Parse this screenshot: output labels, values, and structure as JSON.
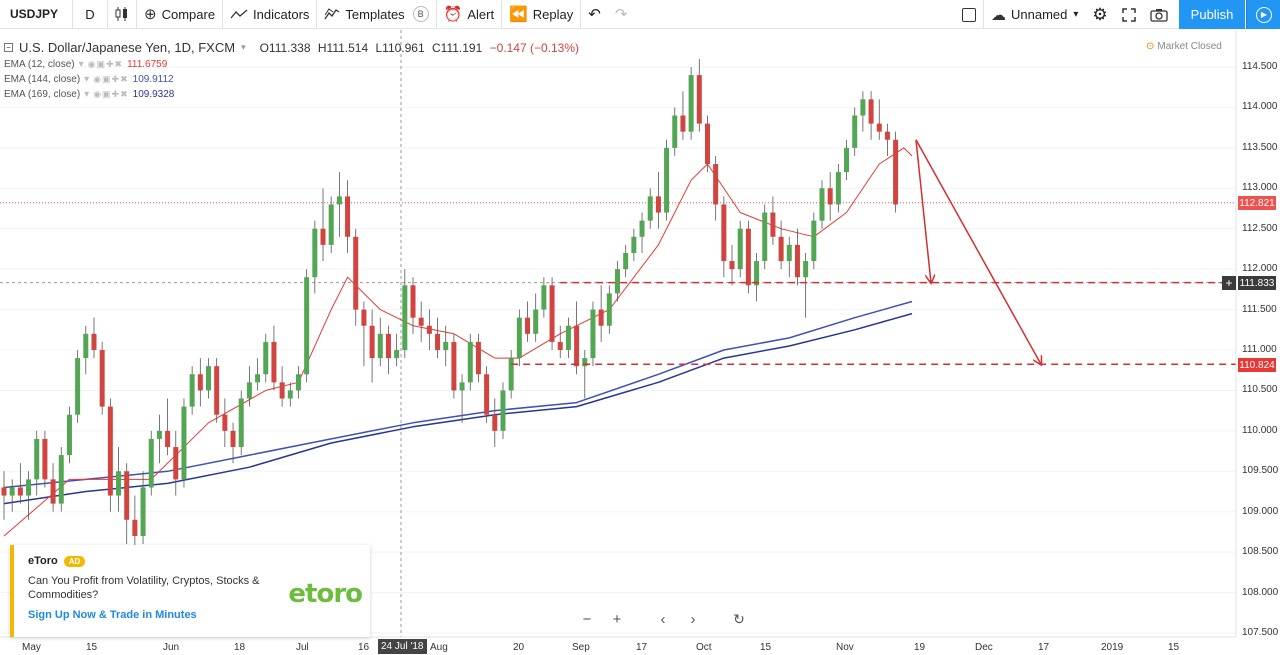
{
  "toolbar": {
    "symbol": "USDJPY",
    "interval": "D",
    "compare_label": "Compare",
    "indicators_label": "Indicators",
    "templates_label": "Templates",
    "templates_badge": "B",
    "alert_label": "Alert",
    "replay_label": "Replay",
    "layout_name": "Unnamed",
    "publish_label": "Publish"
  },
  "legend": {
    "title": "U.S. Dollar/Japanese Yen, 1D, FXCM",
    "open": "O111.338",
    "high": "H111.514",
    "low": "L110.961",
    "close": "C111.191",
    "change": "−0.147 (−0.13%)",
    "market_status": "Market Closed",
    "indicators": [
      {
        "label": "EMA (12, close)",
        "value": "111.6759",
        "color": "#e53935"
      },
      {
        "label": "EMA (144, close)",
        "value": "109.9112",
        "color": "#3f51b5"
      },
      {
        "label": "EMA (169, close)",
        "value": "109.9328",
        "color": "#283593"
      }
    ]
  },
  "price_axis": [
    "114.500",
    "114.000",
    "113.500",
    "113.000",
    "112.500",
    "112.000",
    "111.500",
    "111.000",
    "110.500",
    "110.000",
    "109.500",
    "109.000",
    "108.500",
    "108.000",
    "107.500"
  ],
  "price_badges": {
    "last": "112.821",
    "crosshair": "111.833",
    "level": "110.824"
  },
  "date_axis": [
    "May",
    "15",
    "Jun",
    "18",
    "Jul",
    "16",
    "Aug",
    "20",
    "Sep",
    "17",
    "Oct",
    "15",
    "Nov",
    "19",
    "Dec",
    "17",
    "2019",
    "15"
  ],
  "crosshair_date": "24 Jul '18",
  "ad": {
    "brand": "eToro",
    "tag": "AD",
    "body": "Can You Profit from Volatility, Cryptos, Stocks & Commodities?",
    "link": "Sign Up Now & Trade in Minutes",
    "logo": "etoro"
  },
  "colors": {
    "up": "#53a653",
    "down": "#d2443f",
    "ema12": "#e53935",
    "ema144": "#3f51b5",
    "ema169": "#283593",
    "drawing": "#d32f2f",
    "accent": "#2196f3"
  },
  "chart_data": {
    "type": "candlestick",
    "symbol": "USDJPY",
    "interval": "1D",
    "ylim": [
      107.5,
      114.6
    ],
    "horizontal_levels": [
      111.833,
      110.824
    ],
    "last_price": 112.821,
    "candles": [
      {
        "o": 109.3,
        "h": 109.5,
        "l": 108.9,
        "c": 109.2
      },
      {
        "o": 109.2,
        "h": 109.4,
        "l": 109.0,
        "c": 109.3
      },
      {
        "o": 109.3,
        "h": 109.6,
        "l": 109.1,
        "c": 109.2
      },
      {
        "o": 109.2,
        "h": 109.5,
        "l": 108.9,
        "c": 109.4
      },
      {
        "o": 109.4,
        "h": 110.0,
        "l": 109.2,
        "c": 109.9
      },
      {
        "o": 109.9,
        "h": 110.0,
        "l": 109.3,
        "c": 109.4
      },
      {
        "o": 109.4,
        "h": 109.6,
        "l": 109.0,
        "c": 109.1
      },
      {
        "o": 109.1,
        "h": 109.8,
        "l": 109.0,
        "c": 109.7
      },
      {
        "o": 109.7,
        "h": 110.3,
        "l": 109.6,
        "c": 110.2
      },
      {
        "o": 110.2,
        "h": 111.0,
        "l": 110.1,
        "c": 110.9
      },
      {
        "o": 110.9,
        "h": 111.3,
        "l": 110.7,
        "c": 111.2
      },
      {
        "o": 111.2,
        "h": 111.4,
        "l": 110.9,
        "c": 111.0
      },
      {
        "o": 111.0,
        "h": 111.1,
        "l": 110.2,
        "c": 110.3
      },
      {
        "o": 110.3,
        "h": 110.4,
        "l": 109.0,
        "c": 109.2
      },
      {
        "o": 109.2,
        "h": 109.8,
        "l": 109.0,
        "c": 109.5
      },
      {
        "o": 109.5,
        "h": 109.6,
        "l": 108.6,
        "c": 108.9
      },
      {
        "o": 108.9,
        "h": 109.2,
        "l": 108.5,
        "c": 108.7
      },
      {
        "o": 108.7,
        "h": 109.5,
        "l": 108.6,
        "c": 109.3
      },
      {
        "o": 109.3,
        "h": 110.0,
        "l": 109.2,
        "c": 109.9
      },
      {
        "o": 109.9,
        "h": 110.2,
        "l": 109.6,
        "c": 110.0
      },
      {
        "o": 110.0,
        "h": 110.4,
        "l": 109.7,
        "c": 109.8
      },
      {
        "o": 109.8,
        "h": 110.0,
        "l": 109.2,
        "c": 109.4
      },
      {
        "o": 109.4,
        "h": 110.4,
        "l": 109.3,
        "c": 110.3
      },
      {
        "o": 110.3,
        "h": 110.8,
        "l": 110.2,
        "c": 110.7
      },
      {
        "o": 110.7,
        "h": 110.9,
        "l": 110.3,
        "c": 110.5
      },
      {
        "o": 110.5,
        "h": 110.9,
        "l": 110.4,
        "c": 110.8
      },
      {
        "o": 110.8,
        "h": 110.9,
        "l": 110.1,
        "c": 110.2
      },
      {
        "o": 110.2,
        "h": 110.4,
        "l": 109.8,
        "c": 110.0
      },
      {
        "o": 110.0,
        "h": 110.1,
        "l": 109.6,
        "c": 109.8
      },
      {
        "o": 109.8,
        "h": 110.5,
        "l": 109.7,
        "c": 110.4
      },
      {
        "o": 110.4,
        "h": 110.8,
        "l": 110.3,
        "c": 110.6
      },
      {
        "o": 110.6,
        "h": 110.9,
        "l": 110.5,
        "c": 110.7
      },
      {
        "o": 110.7,
        "h": 111.2,
        "l": 110.6,
        "c": 111.1
      },
      {
        "o": 111.1,
        "h": 111.3,
        "l": 110.5,
        "c": 110.6
      },
      {
        "o": 110.6,
        "h": 110.8,
        "l": 110.3,
        "c": 110.4
      },
      {
        "o": 110.4,
        "h": 110.6,
        "l": 110.3,
        "c": 110.5
      },
      {
        "o": 110.5,
        "h": 110.8,
        "l": 110.4,
        "c": 110.7
      },
      {
        "o": 110.7,
        "h": 112.0,
        "l": 110.6,
        "c": 111.9
      },
      {
        "o": 111.9,
        "h": 112.6,
        "l": 111.7,
        "c": 112.5
      },
      {
        "o": 112.5,
        "h": 113.0,
        "l": 112.1,
        "c": 112.3
      },
      {
        "o": 112.3,
        "h": 112.9,
        "l": 112.2,
        "c": 112.8
      },
      {
        "o": 112.8,
        "h": 113.2,
        "l": 112.4,
        "c": 112.9
      },
      {
        "o": 112.9,
        "h": 113.1,
        "l": 112.2,
        "c": 112.4
      },
      {
        "o": 112.4,
        "h": 112.5,
        "l": 111.3,
        "c": 111.5
      },
      {
        "o": 111.5,
        "h": 111.6,
        "l": 110.8,
        "c": 111.3
      },
      {
        "o": 111.3,
        "h": 111.5,
        "l": 110.6,
        "c": 110.9
      },
      {
        "o": 110.9,
        "h": 111.4,
        "l": 110.8,
        "c": 111.2
      },
      {
        "o": 111.2,
        "h": 111.3,
        "l": 110.7,
        "c": 110.9
      },
      {
        "o": 110.9,
        "h": 111.2,
        "l": 110.8,
        "c": 111.0
      },
      {
        "o": 111.0,
        "h": 112.0,
        "l": 110.9,
        "c": 111.8
      },
      {
        "o": 111.8,
        "h": 111.9,
        "l": 111.2,
        "c": 111.4
      },
      {
        "o": 111.4,
        "h": 111.6,
        "l": 111.1,
        "c": 111.3
      },
      {
        "o": 111.3,
        "h": 111.5,
        "l": 111.0,
        "c": 111.2
      },
      {
        "o": 111.2,
        "h": 111.4,
        "l": 110.9,
        "c": 111.0
      },
      {
        "o": 111.0,
        "h": 111.3,
        "l": 110.8,
        "c": 111.1
      },
      {
        "o": 111.1,
        "h": 111.2,
        "l": 110.4,
        "c": 110.5
      },
      {
        "o": 110.5,
        "h": 110.7,
        "l": 110.1,
        "c": 110.6
      },
      {
        "o": 110.6,
        "h": 111.2,
        "l": 110.5,
        "c": 111.1
      },
      {
        "o": 111.1,
        "h": 111.2,
        "l": 110.6,
        "c": 110.7
      },
      {
        "o": 110.7,
        "h": 110.8,
        "l": 110.1,
        "c": 110.2
      },
      {
        "o": 110.2,
        "h": 110.4,
        "l": 109.8,
        "c": 110.0
      },
      {
        "o": 110.0,
        "h": 110.6,
        "l": 109.9,
        "c": 110.5
      },
      {
        "o": 110.5,
        "h": 111.0,
        "l": 110.4,
        "c": 110.9
      },
      {
        "o": 110.9,
        "h": 111.5,
        "l": 110.8,
        "c": 111.4
      },
      {
        "o": 111.4,
        "h": 111.6,
        "l": 111.1,
        "c": 111.2
      },
      {
        "o": 111.2,
        "h": 111.7,
        "l": 111.1,
        "c": 111.5
      },
      {
        "o": 111.5,
        "h": 111.9,
        "l": 111.4,
        "c": 111.8
      },
      {
        "o": 111.8,
        "h": 111.9,
        "l": 111.0,
        "c": 111.1
      },
      {
        "o": 111.1,
        "h": 111.3,
        "l": 110.9,
        "c": 111.0
      },
      {
        "o": 111.0,
        "h": 111.4,
        "l": 110.9,
        "c": 111.3
      },
      {
        "o": 111.3,
        "h": 111.6,
        "l": 110.7,
        "c": 110.8
      },
      {
        "o": 110.8,
        "h": 111.0,
        "l": 110.4,
        "c": 110.9
      },
      {
        "o": 110.9,
        "h": 111.6,
        "l": 110.8,
        "c": 111.5
      },
      {
        "o": 111.5,
        "h": 111.8,
        "l": 111.1,
        "c": 111.3
      },
      {
        "o": 111.3,
        "h": 111.8,
        "l": 111.2,
        "c": 111.7
      },
      {
        "o": 111.7,
        "h": 112.1,
        "l": 111.6,
        "c": 112.0
      },
      {
        "o": 112.0,
        "h": 112.3,
        "l": 111.9,
        "c": 112.2
      },
      {
        "o": 112.2,
        "h": 112.5,
        "l": 112.1,
        "c": 112.4
      },
      {
        "o": 112.4,
        "h": 112.7,
        "l": 112.2,
        "c": 112.6
      },
      {
        "o": 112.6,
        "h": 113.0,
        "l": 112.5,
        "c": 112.9
      },
      {
        "o": 112.9,
        "h": 113.2,
        "l": 112.5,
        "c": 112.7
      },
      {
        "o": 112.7,
        "h": 113.6,
        "l": 112.6,
        "c": 113.5
      },
      {
        "o": 113.5,
        "h": 114.0,
        "l": 113.4,
        "c": 113.9
      },
      {
        "o": 113.9,
        "h": 114.2,
        "l": 113.6,
        "c": 113.7
      },
      {
        "o": 113.7,
        "h": 114.5,
        "l": 113.6,
        "c": 114.4
      },
      {
        "o": 114.4,
        "h": 114.6,
        "l": 113.7,
        "c": 113.8
      },
      {
        "o": 113.8,
        "h": 113.9,
        "l": 113.2,
        "c": 113.3
      },
      {
        "o": 113.3,
        "h": 113.4,
        "l": 112.6,
        "c": 112.8
      },
      {
        "o": 112.8,
        "h": 112.9,
        "l": 111.9,
        "c": 112.1
      },
      {
        "o": 112.1,
        "h": 112.3,
        "l": 111.8,
        "c": 112.0
      },
      {
        "o": 112.0,
        "h": 112.6,
        "l": 111.9,
        "c": 112.5
      },
      {
        "o": 112.5,
        "h": 112.6,
        "l": 111.7,
        "c": 111.8
      },
      {
        "o": 111.8,
        "h": 112.2,
        "l": 111.6,
        "c": 112.1
      },
      {
        "o": 112.1,
        "h": 112.8,
        "l": 112.0,
        "c": 112.7
      },
      {
        "o": 112.7,
        "h": 112.9,
        "l": 112.3,
        "c": 112.4
      },
      {
        "o": 112.4,
        "h": 112.6,
        "l": 112.0,
        "c": 112.1
      },
      {
        "o": 112.1,
        "h": 112.4,
        "l": 111.9,
        "c": 112.3
      },
      {
        "o": 112.3,
        "h": 112.5,
        "l": 111.8,
        "c": 111.9
      },
      {
        "o": 111.9,
        "h": 112.2,
        "l": 111.4,
        "c": 112.1
      },
      {
        "o": 112.1,
        "h": 112.7,
        "l": 112.0,
        "c": 112.6
      },
      {
        "o": 112.6,
        "h": 113.1,
        "l": 112.5,
        "c": 113.0
      },
      {
        "o": 113.0,
        "h": 113.2,
        "l": 112.6,
        "c": 112.8
      },
      {
        "o": 112.8,
        "h": 113.3,
        "l": 112.7,
        "c": 113.2
      },
      {
        "o": 113.2,
        "h": 113.6,
        "l": 113.1,
        "c": 113.5
      },
      {
        "o": 113.5,
        "h": 114.0,
        "l": 113.4,
        "c": 113.9
      },
      {
        "o": 113.9,
        "h": 114.2,
        "l": 113.7,
        "c": 114.1
      },
      {
        "o": 114.1,
        "h": 114.2,
        "l": 113.6,
        "c": 113.8
      },
      {
        "o": 113.8,
        "h": 114.1,
        "l": 113.6,
        "c": 113.7
      },
      {
        "o": 113.7,
        "h": 113.8,
        "l": 113.4,
        "c": 113.6
      },
      {
        "o": 113.6,
        "h": 113.7,
        "l": 112.7,
        "c": 112.8
      }
    ],
    "ema12": [
      {
        "i": 0,
        "v": 108.7
      },
      {
        "i": 8,
        "v": 109.4
      },
      {
        "i": 14,
        "v": 109.4
      },
      {
        "i": 18,
        "v": 109.4
      },
      {
        "i": 25,
        "v": 110.1
      },
      {
        "i": 32,
        "v": 110.5
      },
      {
        "i": 36,
        "v": 110.6
      },
      {
        "i": 40,
        "v": 111.5
      },
      {
        "i": 42,
        "v": 111.9
      },
      {
        "i": 46,
        "v": 111.5
      },
      {
        "i": 50,
        "v": 111.3
      },
      {
        "i": 55,
        "v": 111.2
      },
      {
        "i": 60,
        "v": 110.9
      },
      {
        "i": 63,
        "v": 110.9
      },
      {
        "i": 68,
        "v": 111.2
      },
      {
        "i": 74,
        "v": 111.5
      },
      {
        "i": 80,
        "v": 112.3
      },
      {
        "i": 84,
        "v": 113.1
      },
      {
        "i": 86,
        "v": 113.3
      },
      {
        "i": 90,
        "v": 112.7
      },
      {
        "i": 95,
        "v": 112.5
      },
      {
        "i": 99,
        "v": 112.4
      },
      {
        "i": 103,
        "v": 112.7
      },
      {
        "i": 107,
        "v": 113.3
      },
      {
        "i": 110,
        "v": 113.5
      },
      {
        "i": 111,
        "v": 113.4
      }
    ],
    "ema144": [
      {
        "i": 0,
        "v": 109.3
      },
      {
        "i": 10,
        "v": 109.4
      },
      {
        "i": 20,
        "v": 109.5
      },
      {
        "i": 30,
        "v": 109.7
      },
      {
        "i": 40,
        "v": 109.9
      },
      {
        "i": 50,
        "v": 110.1
      },
      {
        "i": 60,
        "v": 110.25
      },
      {
        "i": 70,
        "v": 110.35
      },
      {
        "i": 80,
        "v": 110.7
      },
      {
        "i": 88,
        "v": 111.0
      },
      {
        "i": 96,
        "v": 111.15
      },
      {
        "i": 104,
        "v": 111.4
      },
      {
        "i": 111,
        "v": 111.6
      }
    ],
    "ema169": [
      {
        "i": 0,
        "v": 109.1
      },
      {
        "i": 10,
        "v": 109.25
      },
      {
        "i": 20,
        "v": 109.35
      },
      {
        "i": 30,
        "v": 109.55
      },
      {
        "i": 40,
        "v": 109.85
      },
      {
        "i": 50,
        "v": 110.05
      },
      {
        "i": 60,
        "v": 110.2
      },
      {
        "i": 70,
        "v": 110.3
      },
      {
        "i": 80,
        "v": 110.6
      },
      {
        "i": 88,
        "v": 110.9
      },
      {
        "i": 96,
        "v": 111.05
      },
      {
        "i": 104,
        "v": 111.25
      },
      {
        "i": 111,
        "v": 111.45
      }
    ]
  }
}
